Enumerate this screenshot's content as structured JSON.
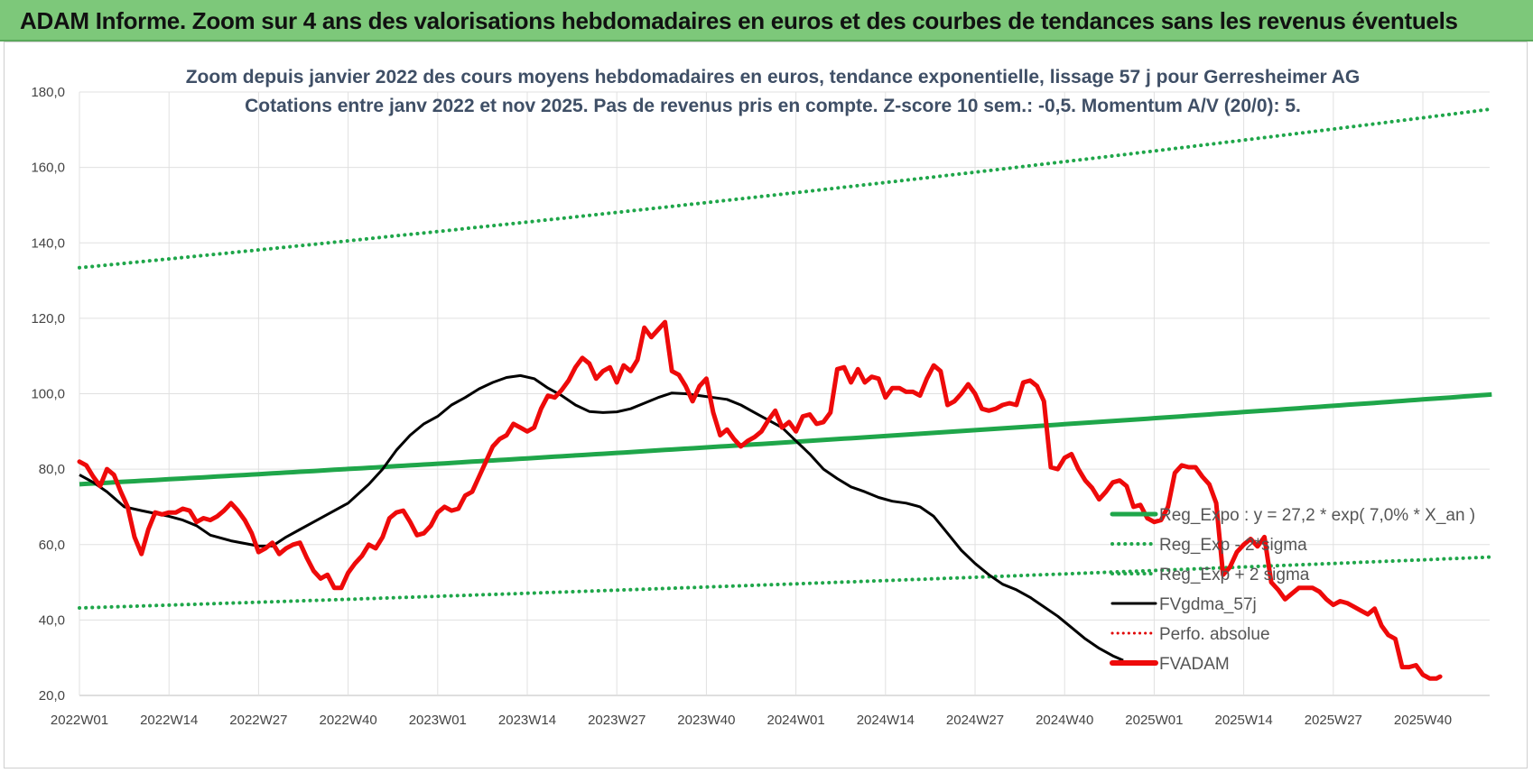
{
  "banner": {
    "text": "ADAM Informe. Zoom sur 4 ans des valorisations hebdomadaires en euros et des courbes de tendances sans les revenus éventuels"
  },
  "colors": {
    "banner_bg": "#7dc87a",
    "regression": "#1fa64a",
    "sigma_bands": "#1fa64a",
    "fvgdma": "#000000",
    "perfo_absolue": "#e00000",
    "fvadam": "#ee0a0a"
  },
  "chart_data": {
    "type": "line",
    "title": "Zoom depuis janvier 2022 des cours moyens hebdomadaires en euros, tendance exponentielle, lissage 57 j pour Gerresheimer AG",
    "subtitle": "Cotations entre janv 2022 et nov 2025. Pas de revenus pris en compte. Z-score 10 sem.: -0,5. Momentum A/V (20/0): 5.",
    "xlabel": "",
    "ylabel": "",
    "ylim": [
      20,
      180
    ],
    "yticks": [
      "20,0",
      "40,0",
      "60,0",
      "80,0",
      "100,0",
      "120,0",
      "140,0",
      "160,0",
      "180,0"
    ],
    "x_tick_labels": [
      "2022W01",
      "2022W14",
      "2022W27",
      "2022W40",
      "2023W01",
      "2023W14",
      "2023W27",
      "2023W40",
      "2024W01",
      "2024W14",
      "2024W27",
      "2024W40",
      "2025W01",
      "2025W14",
      "2025W27",
      "2025W40"
    ],
    "weeks_count": 206,
    "grid": true,
    "legend_position": "right",
    "series": [
      {
        "name": "Reg_Expo : y = 27,2 * exp( 7,0% * X_an )",
        "style": "solid-thick-green",
        "start": 76.0,
        "end": 99.8
      },
      {
        "name": "Reg_Exp - 2*sigma",
        "style": "dotted-green",
        "start": 43.2,
        "end": 56.7
      },
      {
        "name": "Reg_Exp + 2 sigma",
        "style": "dotted-green",
        "start": 133.4,
        "end": 175.5
      },
      {
        "name": "FVgdma_57j",
        "style": "solid-black",
        "keypoints": [
          [
            0,
            78.5
          ],
          [
            4,
            76.5
          ],
          [
            8,
            74
          ],
          [
            13,
            70
          ],
          [
            18,
            69
          ],
          [
            26,
            67.5
          ],
          [
            30,
            66.5
          ],
          [
            34,
            65
          ],
          [
            38,
            62.5
          ],
          [
            44,
            61
          ],
          [
            52,
            59.6
          ],
          [
            56,
            59.6
          ],
          [
            60,
            62
          ],
          [
            64,
            64
          ],
          [
            68,
            66
          ],
          [
            72,
            68
          ],
          [
            78,
            71
          ],
          [
            84,
            76
          ],
          [
            88,
            80
          ],
          [
            92,
            85
          ],
          [
            96,
            89
          ],
          [
            100,
            92
          ],
          [
            104,
            94
          ],
          [
            108,
            97
          ],
          [
            112,
            99
          ],
          [
            116,
            101.3
          ],
          [
            120,
            103
          ],
          [
            124,
            104.3
          ],
          [
            128,
            104.8
          ],
          [
            132,
            104
          ],
          [
            136,
            101.5
          ],
          [
            140,
            99.5
          ],
          [
            144,
            97
          ],
          [
            148,
            95.3
          ],
          [
            152,
            95
          ],
          [
            156,
            95.2
          ],
          [
            160,
            96
          ],
          [
            164,
            97.5
          ],
          [
            168,
            99
          ],
          [
            172,
            100.2
          ],
          [
            176,
            100
          ],
          [
            180,
            99.5
          ],
          [
            184,
            99
          ],
          [
            188,
            98.5
          ],
          [
            192,
            97
          ],
          [
            196,
            95
          ],
          [
            200,
            93
          ],
          [
            204,
            91
          ],
          [
            208,
            87.5
          ],
          [
            212,
            84
          ],
          [
            216,
            80
          ],
          [
            220,
            77.5
          ],
          [
            224,
            75.3
          ],
          [
            228,
            74
          ],
          [
            232,
            72.5
          ],
          [
            236,
            71.5
          ],
          [
            240,
            71
          ],
          [
            244,
            70
          ],
          [
            248,
            67.5
          ],
          [
            252,
            63
          ],
          [
            256,
            58.5
          ],
          [
            260,
            55
          ],
          [
            264,
            52
          ],
          [
            268,
            49.5
          ],
          [
            272,
            48
          ],
          [
            276,
            46
          ],
          [
            280,
            43.5
          ],
          [
            284,
            41
          ],
          [
            288,
            38
          ],
          [
            292,
            35
          ],
          [
            296,
            32.5
          ],
          [
            300,
            30.5
          ],
          [
            303,
            29.3
          ]
        ]
      },
      {
        "name": "Perfo. absolue",
        "style": "dotted-red"
      },
      {
        "name": "FVADAM",
        "style": "solid-thick-red",
        "keypoints": [
          [
            0,
            82
          ],
          [
            2,
            81
          ],
          [
            4,
            78
          ],
          [
            6,
            75.5
          ],
          [
            8,
            80
          ],
          [
            10,
            78.5
          ],
          [
            12,
            74
          ],
          [
            14,
            70
          ],
          [
            16,
            62
          ],
          [
            18,
            57.5
          ],
          [
            20,
            64
          ],
          [
            22,
            68.5
          ],
          [
            24,
            68
          ],
          [
            26,
            68.5
          ],
          [
            28,
            68.5
          ],
          [
            30,
            69.5
          ],
          [
            32,
            69
          ],
          [
            34,
            66
          ],
          [
            36,
            67
          ],
          [
            38,
            66.5
          ],
          [
            40,
            67.5
          ],
          [
            42,
            69
          ],
          [
            44,
            71
          ],
          [
            46,
            69
          ],
          [
            48,
            66.5
          ],
          [
            50,
            63
          ],
          [
            52,
            58
          ],
          [
            54,
            59
          ],
          [
            56,
            60.5
          ],
          [
            58,
            57.5
          ],
          [
            60,
            59
          ],
          [
            62,
            60
          ],
          [
            64,
            60.5
          ],
          [
            66,
            56.5
          ],
          [
            68,
            53
          ],
          [
            70,
            51
          ],
          [
            72,
            52
          ],
          [
            74,
            48.5
          ],
          [
            76,
            48.5
          ],
          [
            78,
            52.5
          ],
          [
            80,
            55
          ],
          [
            82,
            57
          ],
          [
            84,
            60
          ],
          [
            86,
            59
          ],
          [
            88,
            62
          ],
          [
            90,
            67
          ],
          [
            92,
            68.5
          ],
          [
            94,
            69
          ],
          [
            96,
            66
          ],
          [
            98,
            62.5
          ],
          [
            100,
            63
          ],
          [
            102,
            65
          ],
          [
            104,
            68.5
          ],
          [
            106,
            70
          ],
          [
            108,
            69
          ],
          [
            110,
            69.5
          ],
          [
            112,
            73
          ],
          [
            114,
            74
          ],
          [
            116,
            78
          ],
          [
            118,
            82
          ],
          [
            120,
            86
          ],
          [
            122,
            88
          ],
          [
            124,
            89
          ],
          [
            126,
            92
          ],
          [
            128,
            91
          ],
          [
            130,
            90
          ],
          [
            132,
            91
          ],
          [
            134,
            96
          ],
          [
            136,
            99.5
          ],
          [
            138,
            99
          ],
          [
            140,
            101
          ],
          [
            142,
            103.5
          ],
          [
            144,
            107
          ],
          [
            146,
            109.5
          ],
          [
            148,
            108
          ],
          [
            150,
            104
          ],
          [
            152,
            106
          ],
          [
            154,
            107
          ],
          [
            156,
            103
          ],
          [
            158,
            107.5
          ],
          [
            160,
            106
          ],
          [
            162,
            109
          ],
          [
            164,
            117.5
          ],
          [
            166,
            115
          ],
          [
            168,
            117
          ],
          [
            170,
            119
          ],
          [
            172,
            106
          ],
          [
            174,
            105
          ],
          [
            176,
            102
          ],
          [
            178,
            98
          ],
          [
            180,
            102
          ],
          [
            182,
            104
          ],
          [
            184,
            95
          ],
          [
            186,
            89
          ],
          [
            188,
            90.5
          ],
          [
            190,
            88
          ],
          [
            192,
            86
          ],
          [
            194,
            87.5
          ],
          [
            196,
            88.5
          ],
          [
            198,
            90
          ],
          [
            200,
            93
          ],
          [
            202,
            95.5
          ],
          [
            204,
            91
          ],
          [
            206,
            92.5
          ],
          [
            208,
            90
          ],
          [
            210,
            94
          ],
          [
            212,
            94.5
          ],
          [
            214,
            92
          ],
          [
            216,
            92.5
          ],
          [
            218,
            95
          ],
          [
            220,
            106.5
          ],
          [
            222,
            107
          ],
          [
            224,
            103
          ],
          [
            226,
            106.5
          ],
          [
            228,
            103
          ],
          [
            230,
            104.5
          ],
          [
            232,
            104
          ],
          [
            234,
            99
          ],
          [
            236,
            101.5
          ],
          [
            238,
            101.5
          ],
          [
            240,
            100.5
          ],
          [
            242,
            100.5
          ],
          [
            244,
            99.5
          ],
          [
            246,
            104
          ],
          [
            248,
            107.5
          ],
          [
            250,
            106
          ],
          [
            252,
            97
          ],
          [
            254,
            98
          ],
          [
            256,
            100
          ],
          [
            258,
            102.5
          ],
          [
            260,
            100
          ],
          [
            262,
            96
          ],
          [
            264,
            95.5
          ],
          [
            266,
            96
          ],
          [
            268,
            97
          ],
          [
            270,
            97.5
          ],
          [
            272,
            97
          ],
          [
            274,
            103
          ],
          [
            276,
            103.5
          ],
          [
            278,
            102
          ],
          [
            280,
            98
          ],
          [
            282,
            80.5
          ],
          [
            284,
            80
          ],
          [
            286,
            83
          ],
          [
            288,
            84
          ],
          [
            290,
            80
          ],
          [
            292,
            77
          ],
          [
            294,
            75
          ],
          [
            296,
            72
          ],
          [
            298,
            74
          ],
          [
            300,
            76.5
          ],
          [
            302,
            77
          ],
          [
            304,
            75.5
          ],
          [
            306,
            70
          ],
          [
            308,
            70.5
          ],
          [
            310,
            67
          ],
          [
            312,
            66
          ],
          [
            314,
            66.5
          ],
          [
            316,
            70
          ],
          [
            318,
            79
          ],
          [
            320,
            81
          ],
          [
            322,
            80.5
          ],
          [
            324,
            80.5
          ],
          [
            326,
            78
          ],
          [
            328,
            76
          ],
          [
            330,
            71
          ],
          [
            332,
            52
          ],
          [
            334,
            54
          ],
          [
            336,
            58
          ],
          [
            338,
            60
          ],
          [
            340,
            61.5
          ],
          [
            342,
            59.5
          ],
          [
            344,
            62
          ],
          [
            346,
            50
          ],
          [
            348,
            48
          ],
          [
            350,
            45.5
          ],
          [
            352,
            47
          ],
          [
            354,
            48.5
          ],
          [
            356,
            48.5
          ],
          [
            358,
            48.5
          ],
          [
            360,
            47.5
          ],
          [
            362,
            45.5
          ],
          [
            364,
            44
          ],
          [
            366,
            45
          ],
          [
            368,
            44.5
          ],
          [
            370,
            43.5
          ],
          [
            372,
            42.5
          ],
          [
            374,
            41.5
          ],
          [
            376,
            43
          ],
          [
            378,
            38.5
          ],
          [
            380,
            36
          ],
          [
            382,
            35
          ],
          [
            384,
            27.5
          ],
          [
            386,
            27.5
          ],
          [
            388,
            28
          ],
          [
            390,
            25.5
          ],
          [
            392,
            24.5
          ],
          [
            394,
            24.5
          ],
          [
            395,
            25
          ]
        ]
      }
    ]
  }
}
